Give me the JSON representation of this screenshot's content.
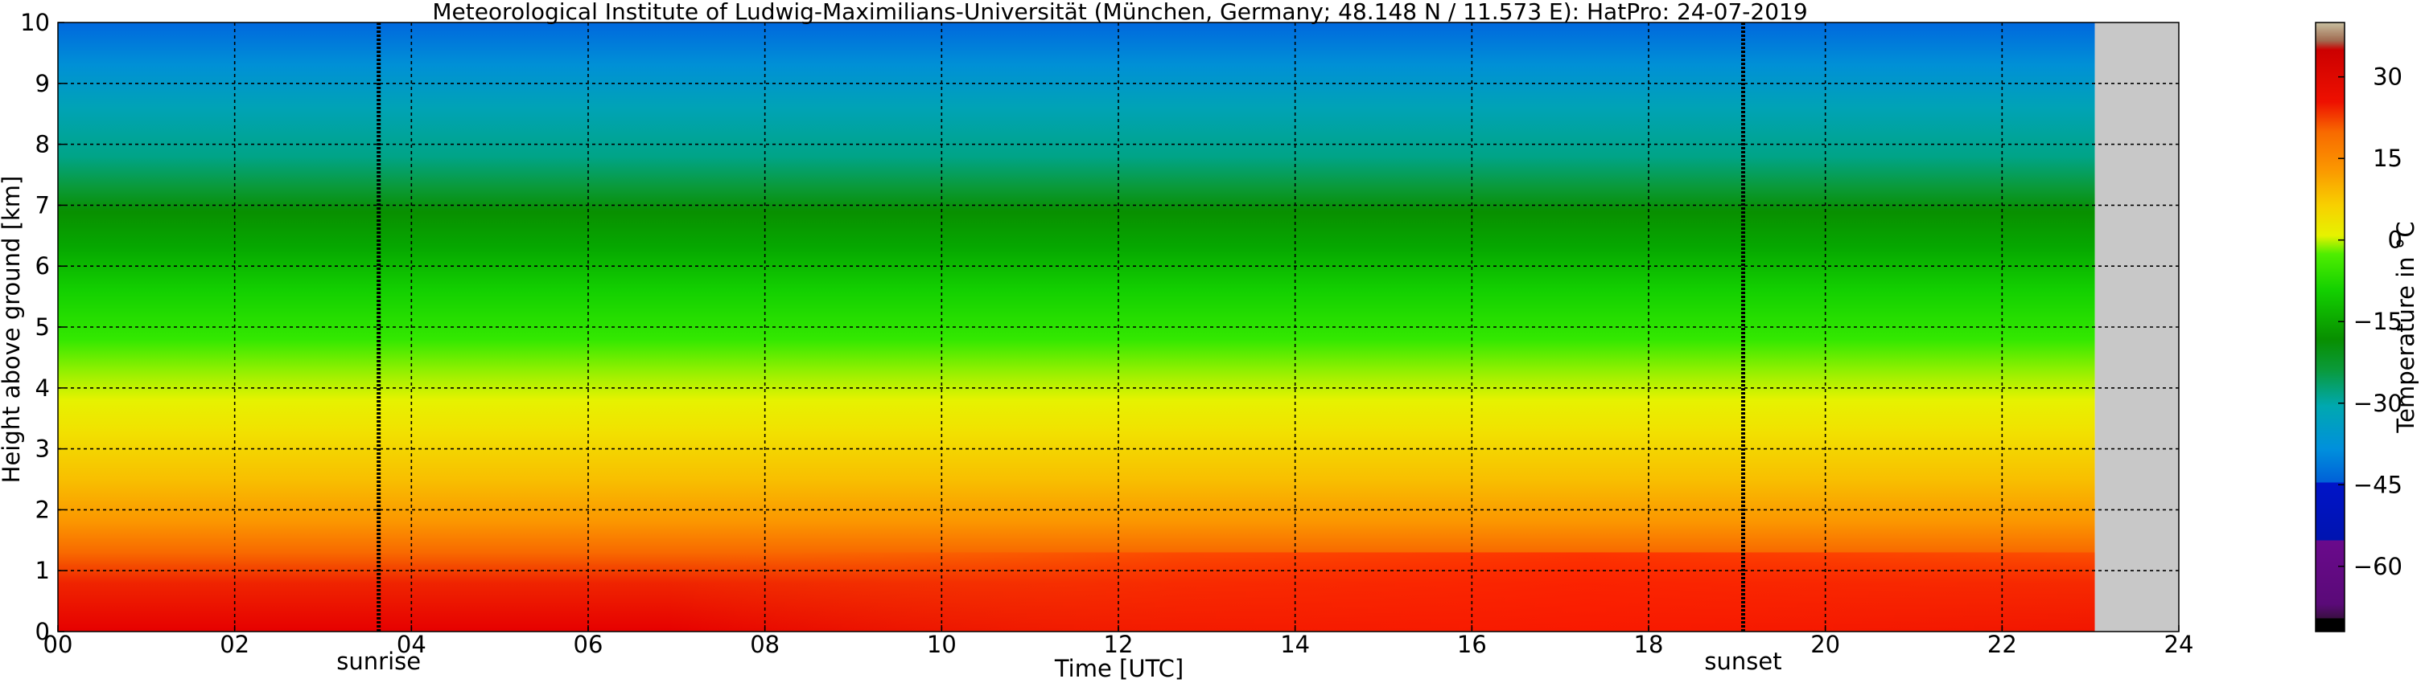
{
  "chart_data": {
    "type": "heatmap",
    "title": "Meteorological Institute of Ludwig-Maximilians-Universität (München, Germany; 48.148 N / 11.573 E):    HatPro: 24-07-2019",
    "xlabel": "Time [UTC]",
    "ylabel": "Height above ground [km]",
    "xlim": [
      0,
      24
    ],
    "ylim": [
      0,
      10
    ],
    "x_ticks": [
      "00",
      "02",
      "04",
      "06",
      "08",
      "10",
      "12",
      "14",
      "16",
      "18",
      "20",
      "22",
      "24"
    ],
    "y_ticks": [
      "0",
      "1",
      "2",
      "3",
      "4",
      "5",
      "6",
      "7",
      "8",
      "9",
      "10"
    ],
    "grid": true,
    "data_end_time": 23.05,
    "no_data_color": "#c8c8c8",
    "annotations": [
      {
        "label": "sunrise",
        "time": 3.63
      },
      {
        "label": "sunset",
        "time": 19.07
      }
    ],
    "height_levels": [
      0.0,
      0.5,
      1.0,
      1.5,
      2.0,
      3.0,
      4.0,
      5.0,
      6.0,
      7.0,
      8.0,
      9.0,
      10.0
    ],
    "time_columns": [
      0,
      2,
      4,
      6,
      8,
      10,
      12,
      14,
      16,
      18,
      20,
      22,
      23
    ],
    "temperature_profiles": [
      {
        "time": 0,
        "values": [
          25,
          17,
          14,
          10,
          7,
          1,
          -5,
          -12,
          -17,
          -23,
          -30,
          -37,
          -44
        ]
      },
      {
        "time": 4,
        "values": [
          24,
          17,
          14,
          10,
          7,
          1,
          -5,
          -12,
          -17,
          -23,
          -30,
          -37,
          -44
        ]
      },
      {
        "time": 8,
        "values": [
          28,
          18,
          14,
          10,
          7,
          1,
          -5,
          -12,
          -17,
          -23,
          -30,
          -37,
          -44
        ]
      },
      {
        "time": 12,
        "values": [
          33,
          21,
          15,
          10,
          7,
          1,
          -5,
          -12,
          -17,
          -23,
          -30,
          -37,
          -44
        ]
      },
      {
        "time": 16,
        "values": [
          34,
          24,
          17,
          11,
          7,
          1,
          -5,
          -12,
          -17,
          -23,
          -30,
          -37,
          -44
        ]
      },
      {
        "time": 20,
        "values": [
          30,
          22,
          16,
          10,
          7,
          1,
          -5,
          -12,
          -17,
          -23,
          -30,
          -37,
          -44
        ]
      },
      {
        "time": 23,
        "values": [
          28,
          21,
          15,
          10,
          7,
          1,
          -5,
          -12,
          -17,
          -23,
          -30,
          -37,
          -44
        ]
      }
    ],
    "colorbar": {
      "label": "Temperature in °C",
      "ticks": [
        "30",
        "15",
        "0",
        "−15",
        "−30",
        "−45",
        "−60"
      ],
      "range": [
        -72,
        40
      ]
    }
  }
}
